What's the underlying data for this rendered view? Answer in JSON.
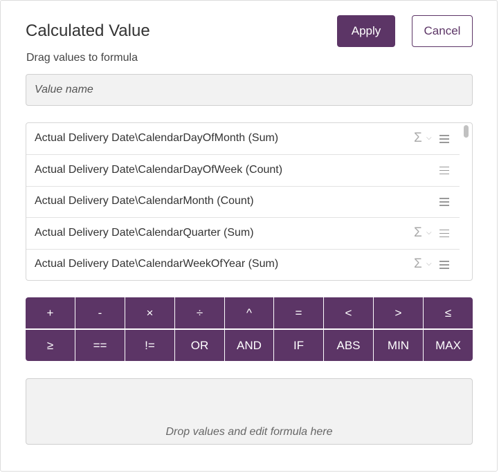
{
  "dialog": {
    "title": "Calculated Value",
    "subtitle": "Drag values to formula",
    "apply_label": "Apply",
    "cancel_label": "Cancel"
  },
  "name_field": {
    "placeholder": "Value name",
    "value": ""
  },
  "fields": [
    {
      "label": "Actual Delivery Date\\CalendarDayOfMonth (Sum)",
      "aggregate_icon": "sigma-icon"
    },
    {
      "label": "Actual Delivery Date\\CalendarDayOfWeek (Count)",
      "aggregate_icon": null
    },
    {
      "label": "Actual Delivery Date\\CalendarMonth (Count)",
      "aggregate_icon": null
    },
    {
      "label": "Actual Delivery Date\\CalendarQuarter (Sum)",
      "aggregate_icon": "sigma-icon"
    },
    {
      "label": "Actual Delivery Date\\CalendarWeekOfYear (Sum)",
      "aggregate_icon": "sigma-icon"
    }
  ],
  "operators": {
    "row1": [
      "+",
      "-",
      "×",
      "÷",
      "^",
      "=",
      "<",
      ">",
      "≤"
    ],
    "row2": [
      "≥",
      "==",
      "!=",
      "OR",
      "AND",
      "IF",
      "ABS",
      "MIN",
      "MAX"
    ]
  },
  "formula": {
    "placeholder": "Drop values and edit formula here"
  },
  "colors": {
    "accent": "#5c3566",
    "field_bg": "#f2f2f2"
  }
}
